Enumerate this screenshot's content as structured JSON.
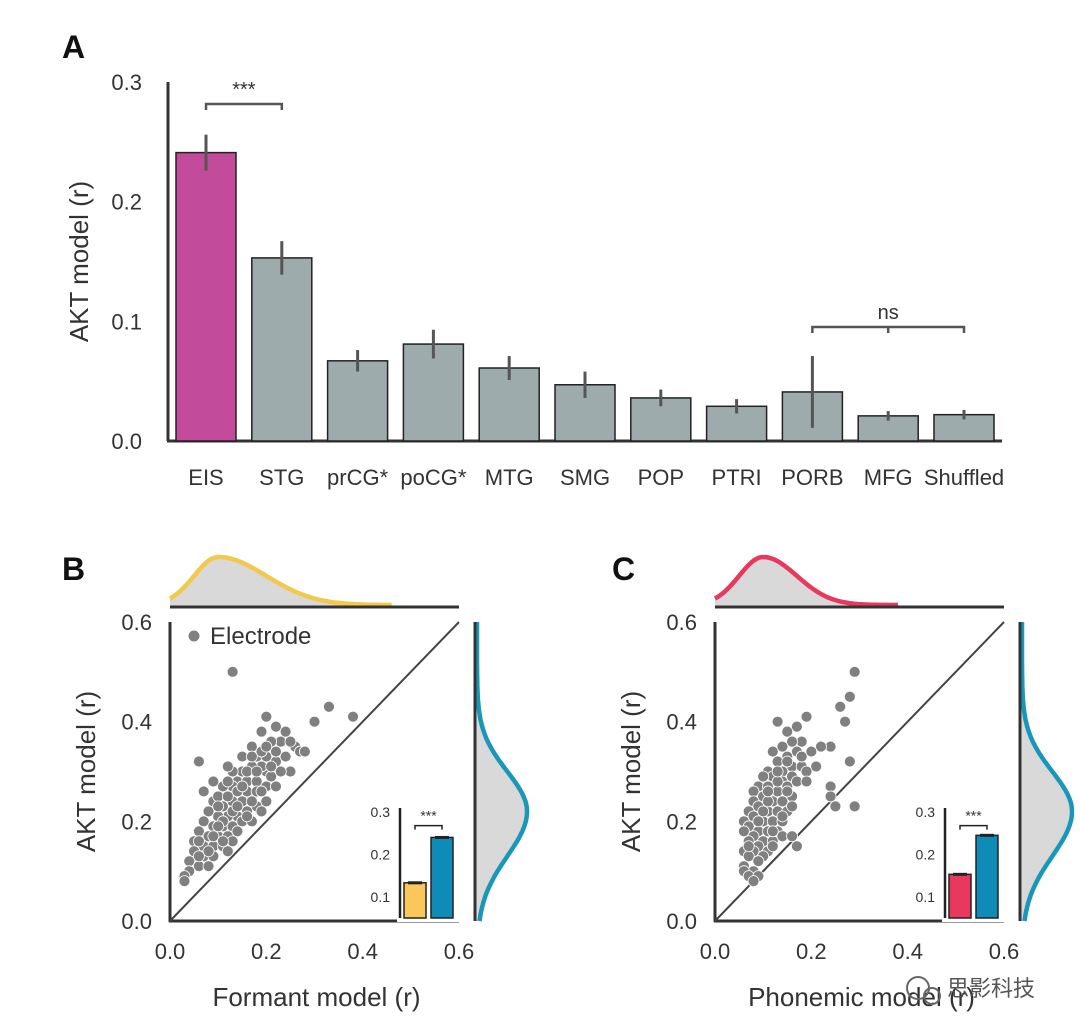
{
  "chart_data": [
    {
      "panel": "A",
      "type": "bar",
      "ylabel": "AKT model (r)",
      "ylim": [
        0,
        0.3
      ],
      "yticks": [
        "0.0",
        "0.1",
        "0.2",
        "0.3"
      ],
      "categories": [
        "EIS",
        "STG",
        "prCG*",
        "poCG*",
        "MTG",
        "SMG",
        "POP",
        "PTRI",
        "PORB",
        "MFG",
        "Shuffled"
      ],
      "values": [
        0.241,
        0.153,
        0.067,
        0.081,
        0.061,
        0.047,
        0.036,
        0.029,
        0.041,
        0.021,
        0.022
      ],
      "errors": [
        0.015,
        0.014,
        0.009,
        0.012,
        0.01,
        0.011,
        0.007,
        0.006,
        0.03,
        0.004,
        0.004
      ],
      "colors": [
        "#c24b9c",
        "#9eabad",
        "#9eabad",
        "#9eabad",
        "#9eabad",
        "#9eabad",
        "#9eabad",
        "#9eabad",
        "#9eabad",
        "#9eabad",
        "#9eabad"
      ],
      "annotations": [
        {
          "from": "EIS",
          "to": "STG",
          "label": "***"
        },
        {
          "from": "PORB",
          "to": "Shuffled",
          "label": "ns"
        }
      ]
    },
    {
      "panel": "B",
      "type": "scatter",
      "xlabel": "Formant model (r)",
      "ylabel": "AKT model (r)",
      "xlim": [
        0,
        0.6
      ],
      "ylim": [
        0,
        0.6
      ],
      "xticks": [
        "0.0",
        "0.2",
        "0.4",
        "0.6"
      ],
      "yticks": [
        "0.0",
        "0.2",
        "0.4",
        "0.6"
      ],
      "legend": "Electrode",
      "point_color": "#808080",
      "x_density_color": "#f2c94c",
      "y_density_color": "#1a97b8",
      "x_density_mode": 0.1,
      "y_density_mode": 0.22,
      "inset": {
        "type": "bar",
        "yticks": [
          "0.1",
          "0.2",
          "0.3"
        ],
        "ylim": [
          0.05,
          0.3
        ],
        "values": [
          0.133,
          0.24
        ],
        "errors": [
          0.003,
          0.004
        ],
        "colors": [
          "#fbc75a",
          "#0e8cb7"
        ],
        "label": "***"
      },
      "points": [
        [
          0.13,
          0.5
        ],
        [
          0.33,
          0.43
        ],
        [
          0.38,
          0.41
        ],
        [
          0.3,
          0.4
        ],
        [
          0.2,
          0.41
        ],
        [
          0.22,
          0.39
        ],
        [
          0.19,
          0.38
        ],
        [
          0.24,
          0.38
        ],
        [
          0.26,
          0.35
        ],
        [
          0.27,
          0.34
        ],
        [
          0.23,
          0.36
        ],
        [
          0.21,
          0.36
        ],
        [
          0.17,
          0.35
        ],
        [
          0.18,
          0.33
        ],
        [
          0.15,
          0.33
        ],
        [
          0.2,
          0.33
        ],
        [
          0.22,
          0.32
        ],
        [
          0.24,
          0.33
        ],
        [
          0.25,
          0.3
        ],
        [
          0.2,
          0.3
        ],
        [
          0.19,
          0.31
        ],
        [
          0.17,
          0.31
        ],
        [
          0.15,
          0.3
        ],
        [
          0.13,
          0.3
        ],
        [
          0.12,
          0.31
        ],
        [
          0.14,
          0.28
        ],
        [
          0.16,
          0.28
        ],
        [
          0.18,
          0.28
        ],
        [
          0.2,
          0.27
        ],
        [
          0.22,
          0.27
        ],
        [
          0.13,
          0.27
        ],
        [
          0.11,
          0.27
        ],
        [
          0.09,
          0.28
        ],
        [
          0.06,
          0.32
        ],
        [
          0.07,
          0.26
        ],
        [
          0.09,
          0.24
        ],
        [
          0.1,
          0.25
        ],
        [
          0.11,
          0.23
        ],
        [
          0.13,
          0.24
        ],
        [
          0.15,
          0.24
        ],
        [
          0.17,
          0.25
        ],
        [
          0.18,
          0.23
        ],
        [
          0.2,
          0.24
        ],
        [
          0.19,
          0.22
        ],
        [
          0.16,
          0.22
        ],
        [
          0.14,
          0.21
        ],
        [
          0.12,
          0.21
        ],
        [
          0.1,
          0.21
        ],
        [
          0.08,
          0.22
        ],
        [
          0.07,
          0.2
        ],
        [
          0.09,
          0.19
        ],
        [
          0.11,
          0.19
        ],
        [
          0.13,
          0.19
        ],
        [
          0.15,
          0.2
        ],
        [
          0.17,
          0.2
        ],
        [
          0.06,
          0.18
        ],
        [
          0.08,
          0.17
        ],
        [
          0.1,
          0.17
        ],
        [
          0.12,
          0.17
        ],
        [
          0.14,
          0.18
        ],
        [
          0.05,
          0.16
        ],
        [
          0.07,
          0.15
        ],
        [
          0.09,
          0.15
        ],
        [
          0.11,
          0.15
        ],
        [
          0.13,
          0.16
        ],
        [
          0.05,
          0.14
        ],
        [
          0.07,
          0.13
        ],
        [
          0.09,
          0.13
        ],
        [
          0.04,
          0.12
        ],
        [
          0.06,
          0.11
        ],
        [
          0.08,
          0.11
        ],
        [
          0.04,
          0.1
        ],
        [
          0.03,
          0.09
        ],
        [
          0.03,
          0.08
        ],
        [
          0.12,
          0.14
        ],
        [
          0.16,
          0.26
        ],
        [
          0.21,
          0.29
        ],
        [
          0.23,
          0.3
        ],
        [
          0.18,
          0.26
        ],
        [
          0.14,
          0.26
        ],
        [
          0.1,
          0.23
        ],
        [
          0.12,
          0.25
        ],
        [
          0.16,
          0.3
        ],
        [
          0.19,
          0.34
        ],
        [
          0.21,
          0.31
        ],
        [
          0.18,
          0.3
        ],
        [
          0.15,
          0.27
        ],
        [
          0.13,
          0.22
        ],
        [
          0.11,
          0.2
        ],
        [
          0.09,
          0.17
        ],
        [
          0.08,
          0.14
        ],
        [
          0.06,
          0.16
        ],
        [
          0.17,
          0.24
        ],
        [
          0.19,
          0.26
        ],
        [
          0.22,
          0.34
        ],
        [
          0.25,
          0.36
        ],
        [
          0.28,
          0.34
        ],
        [
          0.14,
          0.23
        ],
        [
          0.16,
          0.21
        ],
        [
          0.2,
          0.35
        ],
        [
          0.17,
          0.33
        ],
        [
          0.12,
          0.28
        ],
        [
          0.1,
          0.19
        ],
        [
          0.06,
          0.13
        ],
        [
          0.11,
          0.16
        ]
      ]
    },
    {
      "panel": "C",
      "type": "scatter",
      "xlabel": "Phonemic model (r)",
      "ylabel": "AKT model (r)",
      "xlim": [
        0,
        0.6
      ],
      "ylim": [
        0,
        0.6
      ],
      "xticks": [
        "0.0",
        "0.2",
        "0.4",
        "0.6"
      ],
      "yticks": [
        "0.0",
        "0.2",
        "0.4",
        "0.6"
      ],
      "point_color": "#808080",
      "x_density_color": "#e8385e",
      "y_density_color": "#1a97b8",
      "x_density_mode": 0.1,
      "y_density_mode": 0.22,
      "inset": {
        "type": "bar",
        "yticks": [
          "0.1",
          "0.2",
          "0.3"
        ],
        "ylim": [
          0.05,
          0.3
        ],
        "values": [
          0.153,
          0.245
        ],
        "errors": [
          0.003,
          0.004
        ],
        "colors": [
          "#e8385e",
          "#0e8cb7"
        ],
        "label": "***"
      },
      "points": [
        [
          0.29,
          0.5
        ],
        [
          0.28,
          0.45
        ],
        [
          0.26,
          0.43
        ],
        [
          0.27,
          0.4
        ],
        [
          0.19,
          0.41
        ],
        [
          0.17,
          0.39
        ],
        [
          0.15,
          0.38
        ],
        [
          0.13,
          0.4
        ],
        [
          0.18,
          0.36
        ],
        [
          0.16,
          0.36
        ],
        [
          0.24,
          0.35
        ],
        [
          0.22,
          0.35
        ],
        [
          0.14,
          0.35
        ],
        [
          0.12,
          0.34
        ],
        [
          0.17,
          0.34
        ],
        [
          0.15,
          0.33
        ],
        [
          0.13,
          0.32
        ],
        [
          0.16,
          0.31
        ],
        [
          0.18,
          0.31
        ],
        [
          0.21,
          0.31
        ],
        [
          0.28,
          0.32
        ],
        [
          0.14,
          0.3
        ],
        [
          0.11,
          0.3
        ],
        [
          0.12,
          0.29
        ],
        [
          0.14,
          0.28
        ],
        [
          0.16,
          0.29
        ],
        [
          0.1,
          0.29
        ],
        [
          0.09,
          0.27
        ],
        [
          0.11,
          0.27
        ],
        [
          0.13,
          0.26
        ],
        [
          0.15,
          0.27
        ],
        [
          0.24,
          0.27
        ],
        [
          0.08,
          0.26
        ],
        [
          0.1,
          0.25
        ],
        [
          0.12,
          0.24
        ],
        [
          0.14,
          0.24
        ],
        [
          0.16,
          0.25
        ],
        [
          0.08,
          0.24
        ],
        [
          0.09,
          0.23
        ],
        [
          0.11,
          0.22
        ],
        [
          0.13,
          0.22
        ],
        [
          0.15,
          0.22
        ],
        [
          0.07,
          0.22
        ],
        [
          0.24,
          0.25
        ],
        [
          0.25,
          0.23
        ],
        [
          0.29,
          0.23
        ],
        [
          0.08,
          0.21
        ],
        [
          0.1,
          0.2
        ],
        [
          0.12,
          0.2
        ],
        [
          0.14,
          0.2
        ],
        [
          0.06,
          0.2
        ],
        [
          0.07,
          0.19
        ],
        [
          0.09,
          0.18
        ],
        [
          0.11,
          0.18
        ],
        [
          0.13,
          0.18
        ],
        [
          0.06,
          0.18
        ],
        [
          0.08,
          0.17
        ],
        [
          0.1,
          0.16
        ],
        [
          0.12,
          0.16
        ],
        [
          0.07,
          0.16
        ],
        [
          0.09,
          0.15
        ],
        [
          0.11,
          0.14
        ],
        [
          0.06,
          0.14
        ],
        [
          0.08,
          0.14
        ],
        [
          0.1,
          0.13
        ],
        [
          0.07,
          0.13
        ],
        [
          0.09,
          0.12
        ],
        [
          0.06,
          0.11
        ],
        [
          0.08,
          0.1
        ],
        [
          0.06,
          0.1
        ],
        [
          0.07,
          0.09
        ],
        [
          0.09,
          0.09
        ],
        [
          0.08,
          0.08
        ],
        [
          0.14,
          0.17
        ],
        [
          0.16,
          0.17
        ],
        [
          0.17,
          0.15
        ],
        [
          0.15,
          0.26
        ],
        [
          0.17,
          0.28
        ],
        [
          0.19,
          0.3
        ],
        [
          0.18,
          0.33
        ],
        [
          0.2,
          0.34
        ],
        [
          0.11,
          0.24
        ],
        [
          0.13,
          0.28
        ],
        [
          0.1,
          0.22
        ],
        [
          0.12,
          0.18
        ],
        [
          0.14,
          0.21
        ],
        [
          0.16,
          0.23
        ],
        [
          0.07,
          0.15
        ],
        [
          0.09,
          0.2
        ],
        [
          0.11,
          0.26
        ],
        [
          0.13,
          0.3
        ],
        [
          0.15,
          0.32
        ],
        [
          0.19,
          0.28
        ],
        [
          0.12,
          0.15
        ]
      ]
    }
  ],
  "watermark": "思影科技"
}
